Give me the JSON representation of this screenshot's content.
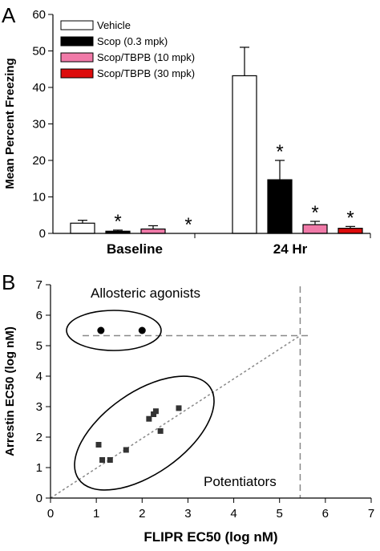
{
  "colors": {
    "vehicle": "#ffffff",
    "scop": "#000000",
    "tbpb10": "#f07aa8",
    "tbpb30": "#dd0c0c",
    "refline": "#888888"
  },
  "chart_data": [
    {
      "panel_label": "A",
      "type": "bar",
      "ylabel": "Mean Percent Freezing",
      "xlabel": "",
      "ylim": [
        0,
        60
      ],
      "yticks": [
        0,
        10,
        20,
        30,
        40,
        50,
        60
      ],
      "categories": [
        "Baseline",
        "24 Hr"
      ],
      "legend_position": "top-left",
      "series": [
        {
          "name": "Vehicle",
          "color_key": "vehicle",
          "values": [
            2.8,
            43.2
          ],
          "errors": [
            0.8,
            7.8
          ],
          "significant": [
            false,
            false
          ]
        },
        {
          "name": "Scop (0.3 mpk)",
          "color_key": "scop",
          "values": [
            0.6,
            14.7
          ],
          "errors": [
            0.3,
            5.3
          ],
          "significant": [
            true,
            true
          ]
        },
        {
          "name": "Scop/TBPB (10 mpk)",
          "color_key": "tbpb10",
          "values": [
            1.2,
            2.4
          ],
          "errors": [
            0.9,
            0.9
          ],
          "significant": [
            false,
            true
          ]
        },
        {
          "name": "Scop/TBPB (30 mpk)",
          "color_key": "tbpb30",
          "values": [
            0,
            1.4
          ],
          "errors": [
            0,
            0.5
          ],
          "significant": [
            true,
            true
          ]
        }
      ],
      "significance_marker": "*"
    },
    {
      "panel_label": "B",
      "type": "scatter",
      "xlabel": "FLIPR EC50 (log nM)",
      "ylabel": "Arrestin EC50 (log nM)",
      "xlim": [
        0,
        7
      ],
      "ylim": [
        0,
        7
      ],
      "xticks": [
        0,
        1,
        2,
        3,
        4,
        5,
        6,
        7
      ],
      "yticks": [
        0,
        1,
        2,
        3,
        4,
        5,
        6,
        7
      ],
      "series": [
        {
          "group": "Allosteric agonists",
          "marker": "circle",
          "points": [
            [
              1.1,
              5.5
            ],
            [
              2.0,
              5.5
            ]
          ]
        },
        {
          "group": "Potentiators",
          "marker": "square",
          "points": [
            [
              1.05,
              1.75
            ],
            [
              1.13,
              1.25
            ],
            [
              1.3,
              1.25
            ],
            [
              1.65,
              1.58
            ],
            [
              2.15,
              2.6
            ],
            [
              2.25,
              2.75
            ],
            [
              2.3,
              2.85
            ],
            [
              2.4,
              2.2
            ],
            [
              2.8,
              2.95
            ]
          ]
        }
      ],
      "reference_lines": {
        "identity": true,
        "vertical_x": 5.45,
        "horizontal_y": 5.33
      },
      "annotations": [
        "Allosteric agonists",
        "Potentiators"
      ]
    }
  ]
}
